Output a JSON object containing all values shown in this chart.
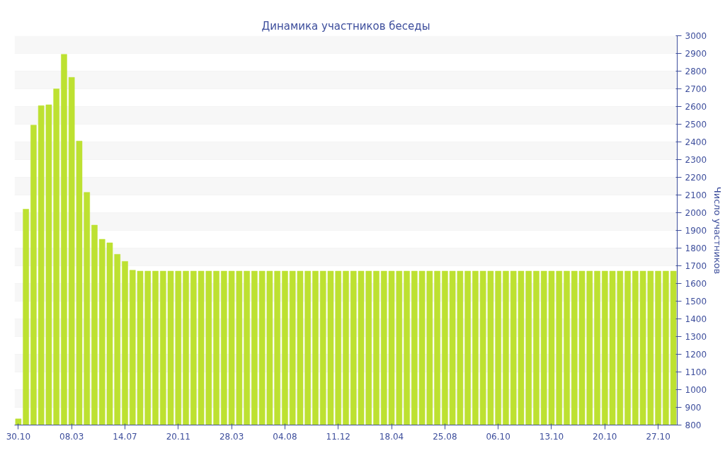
{
  "chart_data": {
    "type": "bar",
    "title": "Динамика участников беседы",
    "ylabel": "Число участников",
    "categories": [
      "30.10",
      null,
      null,
      null,
      null,
      null,
      null,
      "08.03",
      null,
      null,
      null,
      null,
      null,
      null,
      "14.07",
      null,
      null,
      null,
      null,
      null,
      null,
      "20.11",
      null,
      null,
      null,
      null,
      null,
      null,
      "28.03",
      null,
      null,
      null,
      null,
      null,
      null,
      "04.08",
      null,
      null,
      null,
      null,
      null,
      null,
      "11.12",
      null,
      null,
      null,
      null,
      null,
      null,
      "18.04",
      null,
      null,
      null,
      null,
      null,
      null,
      "25.08",
      null,
      null,
      null,
      null,
      null,
      null,
      "06.10",
      null,
      null,
      null,
      null,
      null,
      null,
      "13.10",
      null,
      null,
      null,
      null,
      null,
      null,
      "20.10",
      null,
      null,
      null,
      null,
      null,
      null,
      "27.10",
      null,
      null
    ],
    "values": [
      835,
      2020,
      2495,
      2605,
      2610,
      2700,
      2895,
      2765,
      2405,
      2115,
      1930,
      1850,
      1830,
      1765,
      1725,
      1675,
      1670,
      1670,
      1670,
      1670,
      1670,
      1670,
      1670,
      1670,
      1670,
      1670,
      1670,
      1670,
      1670,
      1670,
      1670,
      1670,
      1670,
      1670,
      1670,
      1670,
      1670,
      1670,
      1670,
      1670,
      1670,
      1670,
      1670,
      1670,
      1670,
      1670,
      1670,
      1670,
      1670,
      1670,
      1670,
      1670,
      1670,
      1670,
      1670,
      1670,
      1670,
      1670,
      1670,
      1670,
      1670,
      1670,
      1670,
      1670,
      1670,
      1670,
      1670,
      1670,
      1670,
      1670,
      1670,
      1670,
      1670,
      1670,
      1670,
      1670,
      1670,
      1670,
      1670,
      1670,
      1670,
      1670,
      1670,
      1670,
      1670,
      1670,
      1670
    ],
    "color": "#bde131",
    "ylim": [
      800,
      3000
    ],
    "yticks": [
      800,
      900,
      1000,
      1100,
      1200,
      1300,
      1400,
      1500,
      1600,
      1700,
      1800,
      1900,
      2000,
      2100,
      2200,
      2300,
      2400,
      2500,
      2600,
      2700,
      2800,
      2900,
      3000
    ],
    "grid": "y"
  }
}
